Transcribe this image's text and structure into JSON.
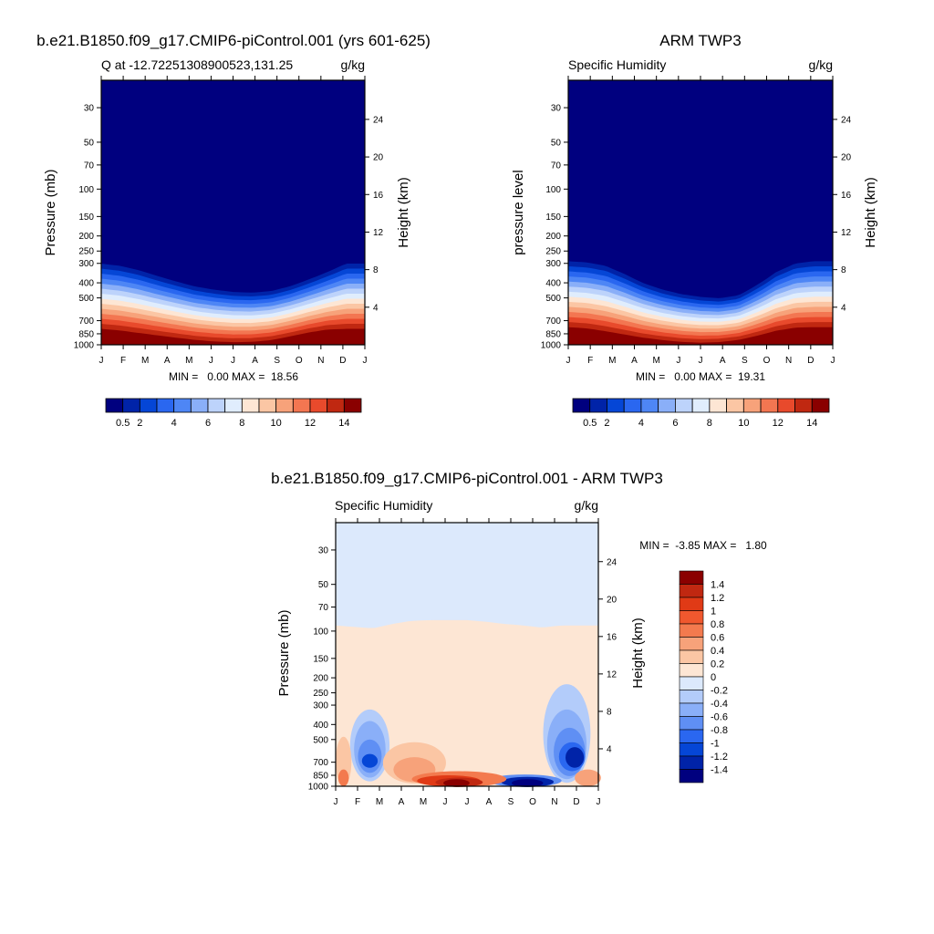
{
  "colors": {
    "abs_palette": [
      "#00007f",
      "#0023a8",
      "#0546d6",
      "#2a67f0",
      "#4e86f5",
      "#8aaff8",
      "#bdd3fb",
      "#e0edfd",
      "#fde6d4",
      "#fbc6a4",
      "#f7a27a",
      "#f37651",
      "#e84a2c",
      "#c02811",
      "#8a0000"
    ],
    "diff_palette": [
      "#8a0000",
      "#c02811",
      "#e03a16",
      "#f0582e",
      "#f37a4e",
      "#f7a27a",
      "#fbc6a4",
      "#fde6d4",
      "#dce9fc",
      "#b3ccfa",
      "#8aaff8",
      "#5f8ff4",
      "#2a67f0",
      "#0546d6",
      "#0023a8",
      "#00007f"
    ]
  },
  "chart_data": [
    {
      "type": "heatmap",
      "panel_id": "model",
      "title": "b.e21.B1850.f09_g17.CMIP6-piControl.001 (yrs 601-625)",
      "subtitle_left": "Q at -12.72251308900523,131.25",
      "subtitle_right": "g/kg",
      "ylabel": "Pressure (mb)",
      "ylabel_right": "Height (km)",
      "x_ticks": [
        "J",
        "F",
        "M",
        "A",
        "M",
        "J",
        "J",
        "A",
        "S",
        "O",
        "N",
        "D",
        "J"
      ],
      "y_ticks": [
        30,
        50,
        70,
        100,
        150,
        200,
        250,
        300,
        400,
        500,
        700,
        850,
        1000
      ],
      "y_range_mb": [
        20,
        1000
      ],
      "height_ticks": [
        24,
        20,
        16,
        12,
        8,
        4
      ],
      "stat_text": "MIN =   0.00 MAX =  18.56",
      "colorbar_levels": [
        0.5,
        1,
        2,
        3,
        4,
        5,
        6,
        7,
        8,
        9,
        10,
        11,
        12,
        13,
        14
      ],
      "colorbar_labels": [
        "0.5",
        "2",
        "4",
        "6",
        "8",
        "10",
        "12",
        "14"
      ],
      "dry_top_mb": [
        290,
        300,
        320,
        350,
        380,
        410,
        430,
        445,
        450,
        440,
        410,
        370,
        330,
        290,
        290
      ],
      "wet_top_mb": [
        820,
        840,
        870,
        900,
        930,
        960,
        980,
        990,
        985,
        960,
        910,
        860,
        825,
        820,
        820
      ]
    },
    {
      "type": "heatmap",
      "panel_id": "obs",
      "title": "ARM TWP3",
      "subtitle_left": "Specific Humidity",
      "subtitle_right": "g/kg",
      "ylabel": "pressure level",
      "ylabel_right": "Height (km)",
      "x_ticks": [
        "J",
        "F",
        "M",
        "A",
        "M",
        "J",
        "J",
        "A",
        "S",
        "O",
        "N",
        "D",
        "J"
      ],
      "y_ticks": [
        30,
        50,
        70,
        100,
        150,
        200,
        250,
        300,
        400,
        500,
        700,
        850,
        1000
      ],
      "y_range_mb": [
        20,
        1000
      ],
      "height_ticks": [
        24,
        20,
        16,
        12,
        8,
        4
      ],
      "stat_text": "MIN =   0.00 MAX =  19.31",
      "colorbar_levels": [
        0.5,
        1,
        2,
        3,
        4,
        5,
        6,
        7,
        8,
        9,
        10,
        11,
        12,
        13,
        14
      ],
      "colorbar_labels": [
        "0.5",
        "2",
        "4",
        "6",
        "8",
        "10",
        "12",
        "14"
      ],
      "dry_top_mb": [
        280,
        285,
        300,
        340,
        390,
        430,
        460,
        480,
        490,
        470,
        400,
        330,
        290,
        280,
        280
      ],
      "wet_top_mb": [
        800,
        815,
        850,
        890,
        930,
        960,
        985,
        995,
        985,
        955,
        900,
        840,
        805,
        800,
        800
      ]
    },
    {
      "type": "heatmap",
      "panel_id": "diff",
      "title": "b.e21.B1850.f09_g17.CMIP6-piControl.001 - ARM TWP3",
      "subtitle_left": "Specific Humidity",
      "subtitle_right": "g/kg",
      "ylabel": "Pressure (mb)",
      "ylabel_right": "Height (km)",
      "x_ticks": [
        "J",
        "F",
        "M",
        "A",
        "M",
        "J",
        "J",
        "A",
        "S",
        "O",
        "N",
        "D",
        "J"
      ],
      "y_ticks": [
        30,
        50,
        70,
        100,
        150,
        200,
        250,
        300,
        400,
        500,
        700,
        850,
        1000
      ],
      "y_range_mb": [
        20,
        1000
      ],
      "height_ticks": [
        24,
        20,
        16,
        12,
        8,
        4
      ],
      "stat_text": "MIN =  -3.85 MAX =   1.80",
      "colorbar_labels": [
        "1.4",
        "1.2",
        "1",
        "0.8",
        "0.6",
        "0.4",
        "0.2",
        "0",
        "-0.2",
        "-0.4",
        "-0.6",
        "-0.8",
        "-1",
        "-1.2",
        "-1.4"
      ],
      "positive_top_mb": [
        92,
        94,
        96,
        90,
        86,
        85,
        85,
        85,
        87,
        90,
        92,
        95,
        92,
        92,
        92
      ]
    }
  ]
}
